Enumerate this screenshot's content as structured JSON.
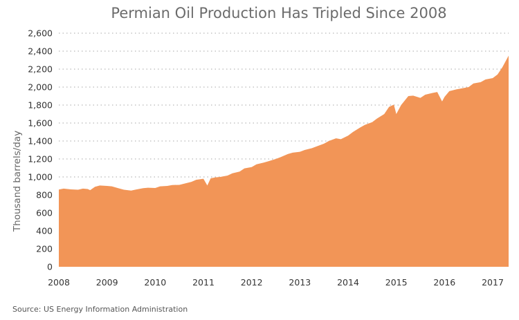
{
  "chart_data": {
    "type": "area",
    "title": "Permian Oil Production Has Tripled Since 2008",
    "xlabel": "",
    "ylabel": "Thousand barrels/day",
    "source": "Source: US Energy Information Administration",
    "xlim": [
      2008.0,
      2017.33
    ],
    "ylim": [
      0,
      2600
    ],
    "x_ticks": [
      "2008",
      "2009",
      "2010",
      "2011",
      "2012",
      "2013",
      "2014",
      "2015",
      "2016",
      "2017"
    ],
    "y_ticks": [
      "0",
      "200",
      "400",
      "600",
      "800",
      "1,000",
      "1,200",
      "1,400",
      "1,600",
      "1,800",
      "2,000",
      "2,200",
      "2,400",
      "2,600"
    ],
    "grid": "horizontal-dotted",
    "fill_color": "#f29557",
    "series": [
      {
        "x": [
          2008.0,
          2008.1,
          2008.25,
          2008.4,
          2008.5,
          2008.6,
          2008.65,
          2008.75,
          2008.85,
          2009.0,
          2009.1,
          2009.25,
          2009.35,
          2009.5,
          2009.6,
          2009.75,
          2009.85,
          2010.0,
          2010.1,
          2010.25,
          2010.35,
          2010.5,
          2010.6,
          2010.75,
          2010.85,
          2011.0,
          2011.08,
          2011.15,
          2011.25,
          2011.35,
          2011.5,
          2011.6,
          2011.75,
          2011.85,
          2012.0,
          2012.1,
          2012.25,
          2012.35,
          2012.5,
          2012.6,
          2012.75,
          2012.85,
          2013.0,
          2013.1,
          2013.25,
          2013.35,
          2013.5,
          2013.6,
          2013.75,
          2013.85,
          2014.0,
          2014.1,
          2014.25,
          2014.35,
          2014.5,
          2014.6,
          2014.75,
          2014.85,
          2014.95,
          2015.0,
          2015.1,
          2015.25,
          2015.35,
          2015.5,
          2015.6,
          2015.75,
          2015.85,
          2015.95,
          2016.0,
          2016.1,
          2016.25,
          2016.35,
          2016.5,
          2016.6,
          2016.75,
          2016.85,
          2017.0,
          2017.1,
          2017.2,
          2017.33
        ],
        "values": [
          860,
          870,
          862,
          858,
          870,
          865,
          853,
          890,
          905,
          900,
          895,
          872,
          858,
          848,
          860,
          875,
          880,
          877,
          895,
          900,
          910,
          912,
          925,
          945,
          968,
          980,
          905,
          985,
          995,
          1000,
          1015,
          1040,
          1060,
          1095,
          1110,
          1140,
          1160,
          1175,
          1200,
          1220,
          1255,
          1270,
          1280,
          1300,
          1320,
          1340,
          1370,
          1400,
          1430,
          1420,
          1460,
          1500,
          1550,
          1580,
          1610,
          1650,
          1700,
          1780,
          1805,
          1700,
          1800,
          1900,
          1905,
          1880,
          1915,
          1935,
          1945,
          1840,
          1890,
          1955,
          1975,
          1985,
          2000,
          2040,
          2055,
          2085,
          2100,
          2140,
          2220,
          2350
        ]
      }
    ]
  }
}
